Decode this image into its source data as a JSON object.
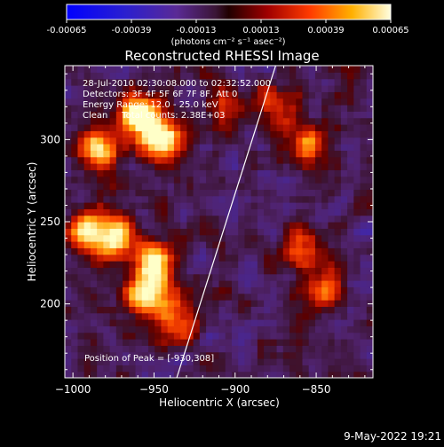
{
  "colorbar": {
    "ticks": [
      "-0.00065",
      "-0.00039",
      "-0.00013",
      "0.00013",
      "0.00039",
      "0.00065"
    ],
    "unit_label": "(photons cm⁻² s⁻¹ asec⁻²)"
  },
  "chart_data": {
    "type": "heatmap",
    "title": "Reconstructed RHESSI Image",
    "xlabel": "Heliocentric X (arcsec)",
    "ylabel": "Heliocentric Y (arcsec)",
    "xlim": [
      -1005,
      -815
    ],
    "ylim": [
      155,
      345
    ],
    "xticks": [
      -1000,
      -950,
      -900,
      -850
    ],
    "xtick_labels": [
      "−1000",
      "−950",
      "−900",
      "−850"
    ],
    "yticks": [
      200,
      250,
      300
    ],
    "ytick_labels": [
      "200",
      "250",
      "300"
    ],
    "colorscale_range": [
      -0.00065,
      0.00065
    ],
    "annotations": [
      "28-Jul-2010 02:30:08.000 to 02:32:52.000",
      "Detectors: 3F 4F 5F 6F 7F 8F, Att 0",
      "Energy Range: 12.0 - 25.0 keV",
      "Clean     Total counts: 2.38E+03"
    ],
    "peak_label": "Position of Peak = [-930,308]",
    "peak": {
      "x": -930,
      "y": 308
    },
    "limb_line": {
      "x": [
        -936,
        -875
      ],
      "y": [
        155,
        345
      ]
    },
    "bright_regions": [
      {
        "x": -960,
        "y": 315,
        "intensity": 1.0
      },
      {
        "x": -945,
        "y": 300,
        "intensity": 0.9
      },
      {
        "x": -985,
        "y": 295,
        "intensity": 0.75
      },
      {
        "x": -990,
        "y": 245,
        "intensity": 0.8
      },
      {
        "x": -950,
        "y": 225,
        "intensity": 0.9
      },
      {
        "x": -955,
        "y": 205,
        "intensity": 0.85
      },
      {
        "x": -972,
        "y": 240,
        "intensity": 0.7
      },
      {
        "x": -935,
        "y": 190,
        "intensity": 0.6
      },
      {
        "x": -855,
        "y": 295,
        "intensity": 0.6
      },
      {
        "x": -860,
        "y": 235,
        "intensity": 0.5
      },
      {
        "x": -845,
        "y": 210,
        "intensity": 0.5
      },
      {
        "x": -875,
        "y": 320,
        "intensity": 0.45
      },
      {
        "x": -905,
        "y": 320,
        "intensity": 0.4
      }
    ]
  },
  "footer": {
    "date": "9-May-2022 19:21"
  }
}
